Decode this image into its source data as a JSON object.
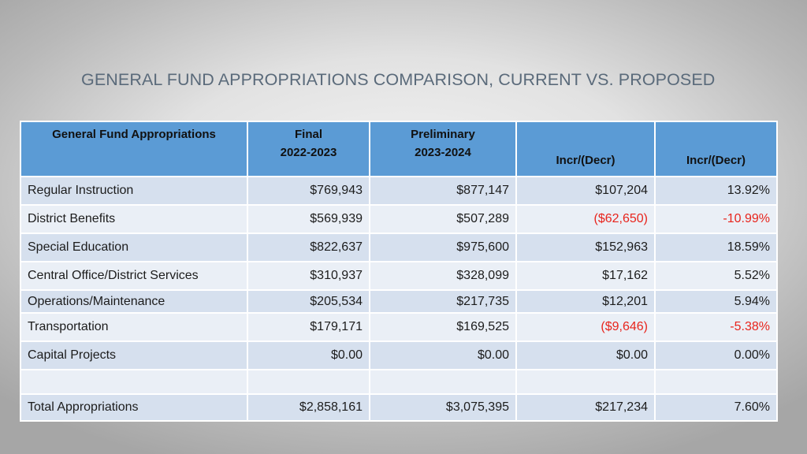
{
  "title": "GENERAL FUND APPROPRIATIONS COMPARISON, CURRENT VS. PROPOSED",
  "table": {
    "headers": [
      {
        "lines": [
          "General Fund Appropriations"
        ]
      },
      {
        "lines": [
          "Final",
          "2022-2023"
        ]
      },
      {
        "lines": [
          "Preliminary",
          "2023-2024"
        ]
      },
      {
        "lines": [
          "Incr/(Decr)"
        ]
      },
      {
        "lines": [
          "Incr/(Decr)"
        ]
      }
    ],
    "rows": [
      {
        "category": "Regular Instruction",
        "final": "$769,943",
        "preliminary": "$877,147",
        "change": "$107,204",
        "percent": "13.92%"
      },
      {
        "category": "District Benefits",
        "final": "$569,939",
        "preliminary": "$507,289",
        "change": "($62,650)",
        "percent": "-10.99%"
      },
      {
        "category": "Special Education",
        "final": "$822,637",
        "preliminary": "$975,600",
        "change": "$152,963",
        "percent": "18.59%"
      },
      {
        "category": "Central Office/District Services",
        "final": "$310,937",
        "preliminary": "$328,099",
        "change": "$17,162",
        "percent": "5.52%"
      },
      {
        "category": "Operations/Maintenance",
        "final": "$205,534",
        "preliminary": "$217,735",
        "change": "$12,201",
        "percent": "5.94%"
      },
      {
        "category": "Transportation",
        "final": "$179,171",
        "preliminary": "$169,525",
        "change": "($9,646)",
        "percent": "-5.38%"
      },
      {
        "category": "Capital Projects",
        "final": "$0.00",
        "preliminary": "$0.00",
        "change": "$0.00",
        "percent": "0.00%"
      },
      {
        "category": "",
        "final": "",
        "preliminary": "",
        "change": "",
        "percent": ""
      },
      {
        "category": "Total Appropriations",
        "final": "$2,858,161",
        "preliminary": "$3,075,395",
        "change": "$217,234",
        "percent": "7.60%"
      }
    ]
  },
  "colors": {
    "header_fill": "#5b9bd5",
    "row_fill_dark": "#d6e0ee",
    "row_fill_light": "#eaeff6",
    "negative_text": "#e8241c",
    "title_text": "#5a6a7a"
  }
}
